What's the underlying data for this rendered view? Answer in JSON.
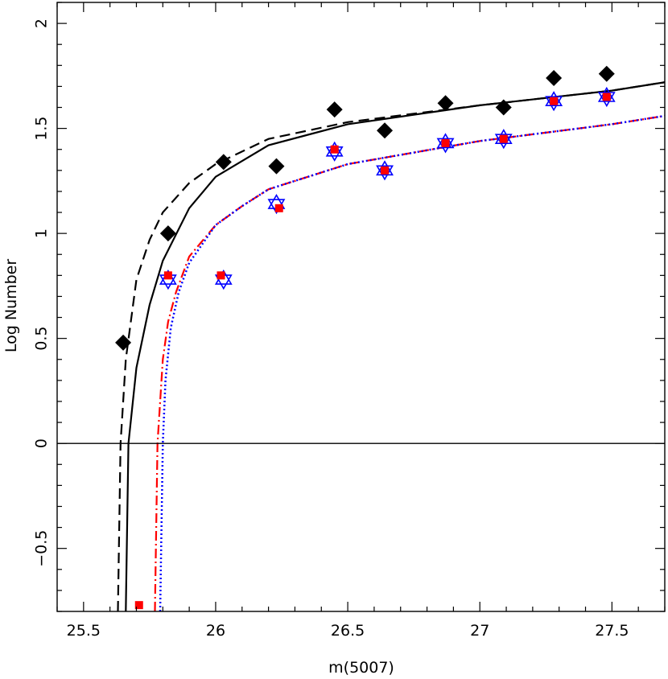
{
  "chart_data": {
    "type": "scatter",
    "title": "",
    "xlabel": "m(5007)",
    "ylabel": "Log Number",
    "xlim": [
      25.4,
      27.7
    ],
    "ylim": [
      -0.8,
      2.1
    ],
    "grid": false,
    "legend": "none",
    "x_ticks": [
      25.5,
      26,
      26.5,
      27,
      27.5
    ],
    "x_tick_labels": [
      "25.5",
      "26",
      "26.5",
      "27",
      "27.5"
    ],
    "y_ticks": [
      -0.5,
      0,
      0.5,
      1,
      1.5,
      2
    ],
    "y_tick_labels": [
      "−0.5",
      "0",
      "0.5",
      "1",
      "1.5",
      "2"
    ],
    "zero_line": 0,
    "series": [
      {
        "marker": "diamond",
        "color": "#000000",
        "points": [
          [
            25.65,
            0.48
          ],
          [
            25.82,
            1.0
          ],
          [
            26.03,
            1.34
          ],
          [
            26.23,
            1.32
          ],
          [
            26.45,
            1.59
          ],
          [
            26.64,
            1.49
          ],
          [
            26.87,
            1.62
          ],
          [
            27.09,
            1.6
          ],
          [
            27.28,
            1.74
          ],
          [
            27.48,
            1.76
          ]
        ]
      },
      {
        "marker": "star-of-david",
        "color": "#0000ff",
        "points": [
          [
            25.82,
            0.78
          ],
          [
            26.03,
            0.78
          ],
          [
            26.23,
            1.14
          ],
          [
            26.45,
            1.39
          ],
          [
            26.64,
            1.3
          ],
          [
            26.87,
            1.43
          ],
          [
            27.09,
            1.45
          ],
          [
            27.28,
            1.63
          ],
          [
            27.48,
            1.65
          ]
        ]
      },
      {
        "marker": "square",
        "color": "#ff0000",
        "points": [
          [
            25.71,
            -0.77
          ],
          [
            25.82,
            0.8
          ],
          [
            26.02,
            0.8
          ],
          [
            26.24,
            1.12
          ],
          [
            26.45,
            1.4
          ],
          [
            26.64,
            1.3
          ],
          [
            26.87,
            1.43
          ],
          [
            27.09,
            1.45
          ],
          [
            27.28,
            1.63
          ],
          [
            27.48,
            1.65
          ]
        ]
      }
    ],
    "curves": [
      {
        "style": "solid",
        "color": "#000000",
        "points": [
          [
            25.66,
            -0.8
          ],
          [
            25.67,
            0.0
          ],
          [
            25.7,
            0.36
          ],
          [
            25.75,
            0.66
          ],
          [
            25.8,
            0.87
          ],
          [
            25.9,
            1.12
          ],
          [
            26.0,
            1.27
          ],
          [
            26.2,
            1.42
          ],
          [
            26.5,
            1.52
          ],
          [
            27.0,
            1.61
          ],
          [
            27.5,
            1.68
          ],
          [
            27.7,
            1.72
          ]
        ]
      },
      {
        "style": "dashed",
        "color": "#000000",
        "points": [
          [
            25.63,
            -0.8
          ],
          [
            25.64,
            0.0
          ],
          [
            25.66,
            0.4
          ],
          [
            25.7,
            0.78
          ],
          [
            25.75,
            0.97
          ],
          [
            25.8,
            1.1
          ],
          [
            25.9,
            1.24
          ],
          [
            26.0,
            1.33
          ],
          [
            26.2,
            1.45
          ],
          [
            26.5,
            1.53
          ],
          [
            27.0,
            1.61
          ],
          [
            27.5,
            1.68
          ],
          [
            27.7,
            1.72
          ]
        ]
      },
      {
        "style": "dashdot",
        "color": "#ff0000",
        "points": [
          [
            25.77,
            -0.8
          ],
          [
            25.78,
            0.0
          ],
          [
            25.8,
            0.4
          ],
          [
            25.82,
            0.58
          ],
          [
            25.85,
            0.72
          ],
          [
            25.9,
            0.89
          ],
          [
            26.0,
            1.04
          ],
          [
            26.1,
            1.13
          ],
          [
            26.2,
            1.21
          ],
          [
            26.5,
            1.33
          ],
          [
            27.0,
            1.44
          ],
          [
            27.5,
            1.52
          ],
          [
            27.7,
            1.56
          ]
        ]
      },
      {
        "style": "dotted",
        "color": "#0000ff",
        "points": [
          [
            25.79,
            -0.8
          ],
          [
            25.8,
            0.0
          ],
          [
            25.81,
            0.3
          ],
          [
            25.83,
            0.55
          ],
          [
            25.86,
            0.72
          ],
          [
            25.9,
            0.86
          ],
          [
            26.0,
            1.04
          ],
          [
            26.1,
            1.13
          ],
          [
            26.2,
            1.21
          ],
          [
            26.5,
            1.33
          ],
          [
            27.0,
            1.44
          ],
          [
            27.5,
            1.52
          ],
          [
            27.7,
            1.56
          ]
        ]
      }
    ]
  }
}
